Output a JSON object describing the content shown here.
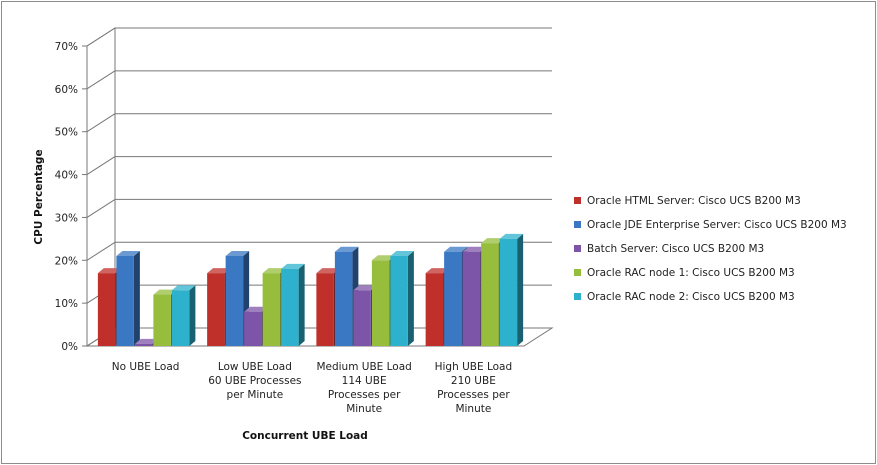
{
  "chart_data": {
    "type": "bar",
    "title": "",
    "xlabel": "Concurrent UBE Load",
    "ylabel": "CPU Percentage",
    "ylim": [
      0,
      70
    ],
    "yticks": [
      "0%",
      "10%",
      "20%",
      "30%",
      "40%",
      "50%",
      "60%",
      "70%"
    ],
    "ytick_values": [
      0,
      10,
      20,
      30,
      40,
      50,
      60,
      70
    ],
    "categories": [
      [
        "No UBE Load"
      ],
      [
        "Low UBE Load",
        "60 UBE Processes",
        "per Minute"
      ],
      [
        "Medium UBE Load",
        "114 UBE",
        "Processes per",
        "Minute"
      ],
      [
        "High UBE Load",
        "210 UBE",
        "Processes per",
        "Minute"
      ]
    ],
    "series": [
      {
        "name": "Oracle HTML Server: Cisco UCS B200 M3",
        "color": "#c0302b",
        "values": [
          17,
          17,
          17,
          17
        ]
      },
      {
        "name": "Oracle JDE Enterprise Server: Cisco UCS B200 M3",
        "color": "#3a78c4",
        "values": [
          21,
          21,
          22,
          22
        ]
      },
      {
        "name": "Batch Server: Cisco UCS B200 M3",
        "color": "#7d55a8",
        "values": [
          0.5,
          8,
          13,
          22
        ]
      },
      {
        "name": "Oracle RAC node 1: Cisco UCS B200 M3",
        "color": "#96be3c",
        "values": [
          12,
          17,
          20,
          24
        ]
      },
      {
        "name": "Oracle RAC node 2: Cisco UCS B200 M3",
        "color": "#2eb1cc",
        "values": [
          13,
          18,
          21,
          25
        ]
      }
    ],
    "grid": true,
    "legend": "right",
    "style": "3d-clustered-column"
  }
}
